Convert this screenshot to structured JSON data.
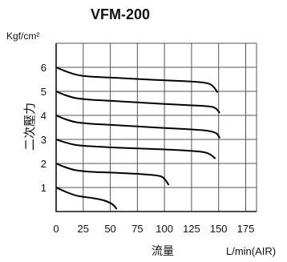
{
  "chart_data": {
    "type": "line",
    "title": "VFM-200",
    "y_unit": "Kgf/cm²",
    "ylabel": "二次壓力",
    "xlabel": "流量",
    "x_unit": "L/min(AIR)",
    "xlim": [
      0,
      185
    ],
    "ylim": [
      0,
      7
    ],
    "grid": true,
    "x_ticks": [
      "0",
      "25",
      "50",
      "75",
      "100",
      "125",
      "150",
      "175"
    ],
    "x_tick_values": [
      0,
      25,
      50,
      75,
      100,
      125,
      150,
      175
    ],
    "y_ticks": [
      "1",
      "2",
      "3",
      "4",
      "5",
      "6"
    ],
    "y_tick_values": [
      1,
      2,
      3,
      4,
      5,
      6
    ],
    "series": [
      {
        "x": [
          0,
          8,
          18,
          30,
          60,
          90,
          120,
          135,
          142,
          146,
          149
        ],
        "y": [
          6.0,
          5.85,
          5.7,
          5.62,
          5.55,
          5.48,
          5.42,
          5.37,
          5.3,
          5.15,
          4.95
        ]
      },
      {
        "x": [
          0,
          8,
          18,
          30,
          60,
          90,
          120,
          140,
          147,
          151
        ],
        "y": [
          5.0,
          4.85,
          4.72,
          4.66,
          4.58,
          4.5,
          4.43,
          4.38,
          4.3,
          4.1
        ]
      },
      {
        "x": [
          0,
          8,
          18,
          30,
          60,
          90,
          120,
          140,
          148,
          151
        ],
        "y": [
          4.0,
          3.85,
          3.72,
          3.66,
          3.58,
          3.5,
          3.43,
          3.36,
          3.25,
          3.05
        ]
      },
      {
        "x": [
          0,
          8,
          18,
          30,
          60,
          90,
          115,
          135,
          142,
          147
        ],
        "y": [
          3.0,
          2.88,
          2.77,
          2.72,
          2.65,
          2.6,
          2.55,
          2.48,
          2.38,
          2.2
        ]
      },
      {
        "x": [
          0,
          8,
          18,
          30,
          60,
          80,
          96,
          101,
          104
        ],
        "y": [
          2.0,
          1.85,
          1.72,
          1.66,
          1.6,
          1.55,
          1.47,
          1.3,
          1.1
        ]
      },
      {
        "x": [
          0,
          10,
          20,
          35,
          45,
          52,
          56
        ],
        "y": [
          1.0,
          0.8,
          0.65,
          0.55,
          0.45,
          0.3,
          0.1
        ]
      }
    ]
  }
}
